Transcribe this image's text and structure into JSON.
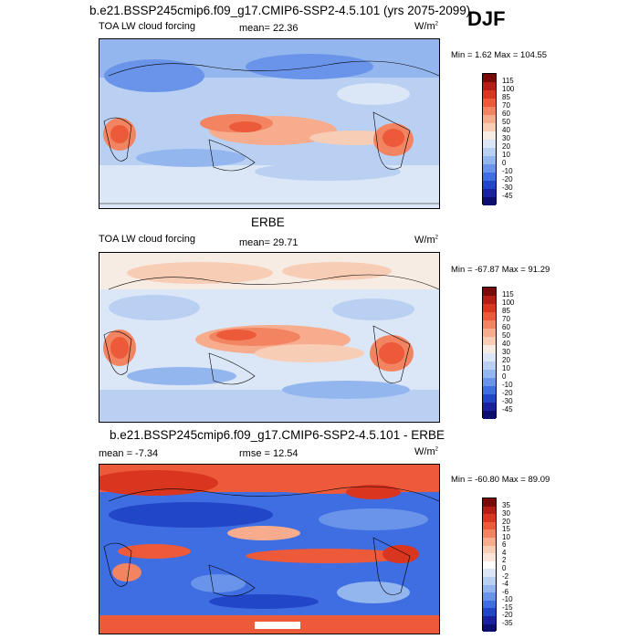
{
  "season": "DJF",
  "panels": [
    {
      "title": "b.e21.BSSP245cmip6.f09_g17.CMIP6-SSP2-4.5.101 (yrs 2075-2099)",
      "left_label": "TOA LW cloud forcing",
      "center_label": "mean=  22.36",
      "units": "W/m",
      "units_sup": "2",
      "minmax": "Min =   1.62 Max = 104.55",
      "colorbar_labels": [
        "115",
        "100",
        "85",
        "70",
        "60",
        "50",
        "40",
        "30",
        "20",
        "10",
        "0",
        "-10",
        "-20",
        "-30",
        "-45"
      ],
      "colors": [
        "#7a0a0a",
        "#b51e16",
        "#d9351f",
        "#ec5a3a",
        "#f28462",
        "#f6ac8d",
        "#f8cdb6",
        "#f6ece4",
        "#dbe6f6",
        "#b9d0f2",
        "#93b6ef",
        "#6a93ea",
        "#3f6de2",
        "#2246c8",
        "#1a22a0",
        "#0d0f70"
      ]
    },
    {
      "title": "ERBE",
      "left_label": "TOA LW cloud forcing",
      "center_label": "mean=  29.71",
      "units": "W/m",
      "units_sup": "2",
      "minmax": "Min = -67.87 Max =  91.29",
      "colorbar_labels": [
        "115",
        "100",
        "85",
        "70",
        "60",
        "50",
        "40",
        "30",
        "20",
        "10",
        "0",
        "-10",
        "-20",
        "-30",
        "-45"
      ],
      "colors": [
        "#7a0a0a",
        "#b51e16",
        "#d9351f",
        "#ec5a3a",
        "#f28462",
        "#f6ac8d",
        "#f8cdb6",
        "#f6ece4",
        "#dbe6f6",
        "#b9d0f2",
        "#93b6ef",
        "#6a93ea",
        "#3f6de2",
        "#2246c8",
        "#1a22a0",
        "#0d0f70"
      ]
    },
    {
      "title": "b.e21.BSSP245cmip6.f09_g17.CMIP6-SSP2-4.5.101 - ERBE",
      "left_label": "mean =  -7.34",
      "center_label": "rmse =  12.54",
      "units": "W/m",
      "units_sup": "2",
      "minmax": "Min = -60.80 Max =  89.09",
      "colorbar_labels": [
        "35",
        "30",
        "20",
        "15",
        "10",
        "6",
        "4",
        "2",
        "0",
        "-2",
        "-4",
        "-6",
        "-10",
        "-15",
        "-20",
        "-35"
      ],
      "colors": [
        "#7a0a0a",
        "#b51e16",
        "#d9351f",
        "#ec5a3a",
        "#f28462",
        "#f6ac8d",
        "#f8cdb6",
        "#fbe5d8",
        "#ffffff",
        "#dbe6f6",
        "#b9d0f2",
        "#93b6ef",
        "#6a93ea",
        "#3f6de2",
        "#2246c8",
        "#1a22a0",
        "#0d0f70"
      ]
    }
  ]
}
